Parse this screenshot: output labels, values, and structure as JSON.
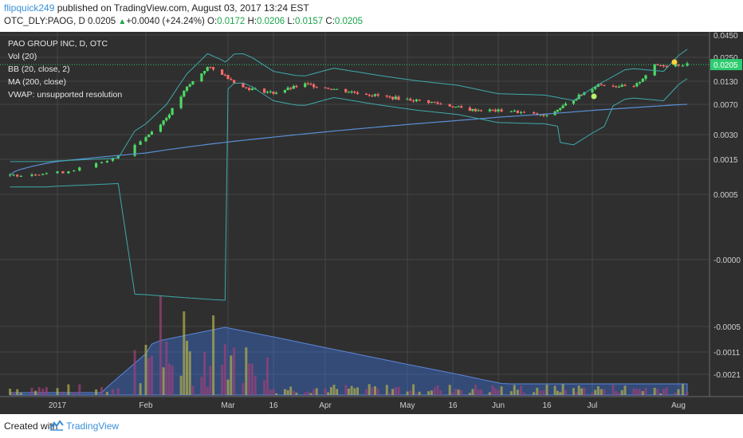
{
  "header": {
    "author": "flipquick249",
    "published": " published on TradingView.com, August 03, 2017 13:24 EST",
    "symbol": "OTC_DLY:PAOG, D",
    "last": "0.0205",
    "change": "+0.0040 (+24.24%)",
    "o_label": "O:",
    "o": "0.0172",
    "h_label": "H:",
    "h": "0.0206",
    "l_label": "L:",
    "l": "0.0157",
    "c_label": "C:",
    "c": "0.0205"
  },
  "footer": {
    "created": "Created with",
    "brand": "TradingView"
  },
  "chart_data": {
    "type": "candlestick",
    "legend": [
      "PAO GROUP INC, D, OTC",
      "Vol (20)",
      "BB (20, close, 2)",
      "MA (200, close)",
      "VWAP: unsupported resolution"
    ],
    "y_ticks": [
      "0.0450",
      "0.0250",
      "0.0130",
      "0.0070",
      "0.0030",
      "0.0015",
      "0.0005",
      "-0.0000",
      "-0.0005",
      "-0.0011",
      "-0.0021"
    ],
    "x_ticks": [
      "2017",
      "Feb",
      "Mar",
      "16",
      "Apr",
      "May",
      "16",
      "Jun",
      "16",
      "Jul",
      "Aug"
    ],
    "last_price_label": "0.0205",
    "colors": {
      "background": "#2f2f2f",
      "grid": "#464646",
      "up": "#4cd964",
      "down": "#ff6b6b",
      "bollinger": "#3fa9a9",
      "ma200": "#5a8fd6",
      "volume_area": "#3b6fd0",
      "price_line": "#2ecc71"
    },
    "close_series": [
      {
        "x": "2017-01-03",
        "close": 0.0009
      },
      {
        "x": "2017-01-17",
        "close": 0.001
      },
      {
        "x": "2017-01-25",
        "close": 0.0014
      },
      {
        "x": "2017-02-01",
        "close": 0.0028
      },
      {
        "x": "2017-02-08",
        "close": 0.0048
      },
      {
        "x": "2017-02-15",
        "close": 0.011
      },
      {
        "x": "2017-02-22",
        "close": 0.019
      },
      {
        "x": "2017-02-27",
        "close": 0.016
      },
      {
        "x": "2017-03-06",
        "close": 0.011
      },
      {
        "x": "2017-03-16",
        "close": 0.0095
      },
      {
        "x": "2017-03-27",
        "close": 0.012
      },
      {
        "x": "2017-04-10",
        "close": 0.01
      },
      {
        "x": "2017-04-24",
        "close": 0.0085
      },
      {
        "x": "2017-05-08",
        "close": 0.0075
      },
      {
        "x": "2017-05-22",
        "close": 0.006
      },
      {
        "x": "2017-06-05",
        "close": 0.0058
      },
      {
        "x": "2017-06-16",
        "close": 0.005
      },
      {
        "x": "2017-06-26",
        "close": 0.008
      },
      {
        "x": "2017-07-05",
        "close": 0.012
      },
      {
        "x": "2017-07-17",
        "close": 0.011
      },
      {
        "x": "2017-07-24",
        "close": 0.02
      },
      {
        "x": "2017-08-02",
        "close": 0.0205
      }
    ]
  }
}
